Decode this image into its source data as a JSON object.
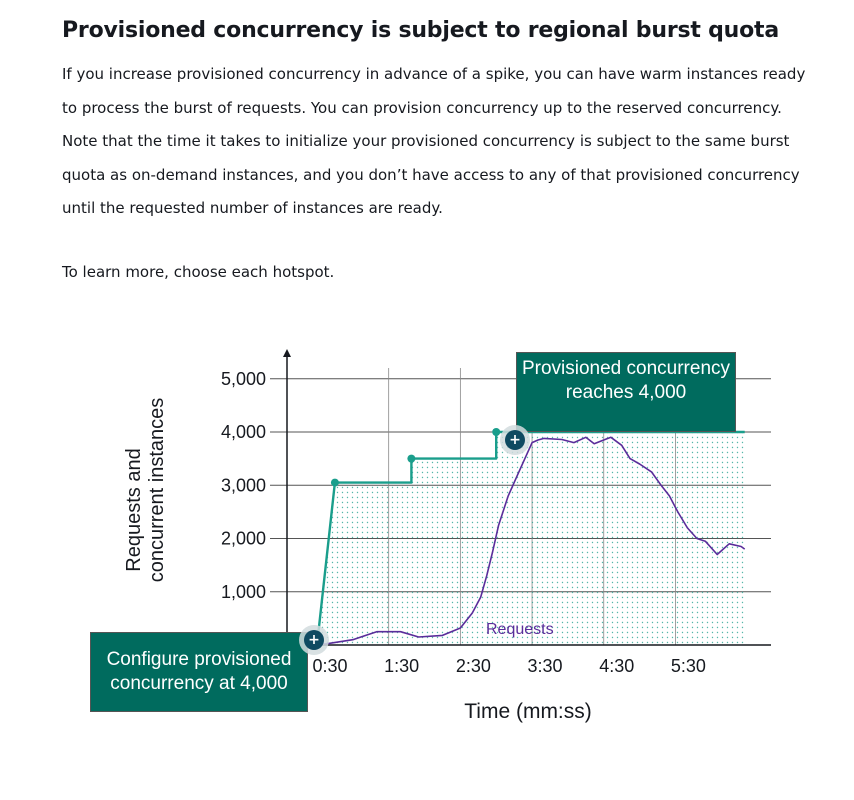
{
  "heading": "Provisioned concurrency is subject to regional burst quota",
  "intro": "If you increase provisioned concurrency in advance of a spike, you can have warm instances ready to process the burst of requests. You can provision concurrency up to the reserved concurrency. Note that the time it takes to initialize your provisioned concurrency is subject to the same burst quota as on-demand instances, and you don’t have access to any of that provisioned concurrency until the requested number of instances are ready.",
  "hint": "To learn more, choose each hotspot.",
  "hotspots": {
    "top": {
      "label": "Provisioned concurrency reaches 4,000",
      "symbol": "+"
    },
    "bottom": {
      "label": "Configure provisioned concurrency at 4,000",
      "symbol": "+"
    }
  },
  "colors": {
    "provisioned": "#1a9e8c",
    "requests": "#5a2d9a",
    "callout": "#006b5e",
    "hotspot": "#0f4a61"
  },
  "chart_data": {
    "type": "line",
    "xlabel": "Time (mm:ss)",
    "ylabel": "Requests and concurrent instances",
    "xlim": [
      30,
      410
    ],
    "ylim": [
      0,
      5300
    ],
    "x_ticks": [
      {
        "value": 30,
        "label": "0:30"
      },
      {
        "value": 90,
        "label": "1:30"
      },
      {
        "value": 150,
        "label": "2:30"
      },
      {
        "value": 210,
        "label": "3:30"
      },
      {
        "value": 270,
        "label": "4:30"
      },
      {
        "value": 330,
        "label": "5:30"
      }
    ],
    "y_ticks": [
      {
        "value": 1000,
        "label": "1,000"
      },
      {
        "value": 2000,
        "label": "2,000"
      },
      {
        "value": 3000,
        "label": "3,000"
      },
      {
        "value": 4000,
        "label": "4,000"
      },
      {
        "value": 5000,
        "label": "5,000"
      }
    ],
    "series": [
      {
        "name": "",
        "role": "provisioned",
        "x": [
          30,
          45,
          109,
          109,
          180,
          180,
          388
        ],
        "y": [
          0,
          3050,
          3050,
          3500,
          3500,
          4000,
          4000
        ],
        "markers": [
          [
            45,
            3050
          ],
          [
            109,
            3500
          ],
          [
            180,
            4000
          ]
        ]
      },
      {
        "name": "Requests",
        "role": "requests",
        "x": [
          30,
          40,
          60,
          80,
          100,
          115,
          135,
          150,
          160,
          167,
          172,
          177,
          182,
          190,
          198,
          204,
          210,
          215,
          220,
          235,
          245,
          255,
          262,
          270,
          276,
          285,
          292,
          300,
          310,
          318,
          325,
          332,
          340,
          348,
          355,
          365,
          375,
          385,
          388
        ],
        "y": [
          0,
          30,
          100,
          250,
          250,
          150,
          180,
          320,
          600,
          900,
          1300,
          1750,
          2250,
          2800,
          3200,
          3500,
          3800,
          3850,
          3880,
          3860,
          3800,
          3900,
          3780,
          3850,
          3900,
          3750,
          3500,
          3400,
          3250,
          3000,
          2800,
          2500,
          2200,
          2000,
          1950,
          1700,
          1900,
          1850,
          1800
        ]
      }
    ],
    "grid": true,
    "filled_area_under": "provisioned",
    "legend": "none"
  }
}
